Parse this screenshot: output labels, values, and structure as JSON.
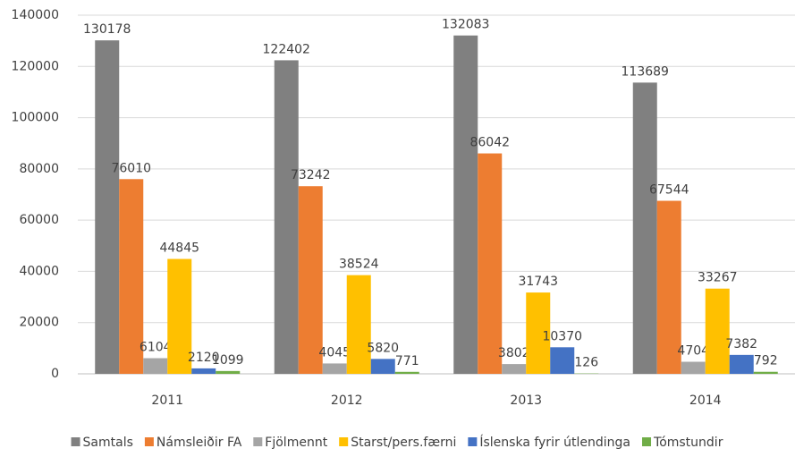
{
  "chart_data": {
    "type": "bar",
    "categories": [
      "2011",
      "2012",
      "2013",
      "2014"
    ],
    "series": [
      {
        "name": "Samtals",
        "color": "#808080",
        "values": [
          130178,
          122402,
          132083,
          113689
        ]
      },
      {
        "name": "Námsleiðir FA",
        "color": "#ed7d31",
        "values": [
          76010,
          73242,
          86042,
          67544
        ]
      },
      {
        "name": "Fjölmennt",
        "color": "#a5a5a5",
        "values": [
          6104,
          4045,
          3802,
          4704
        ]
      },
      {
        "name": "Starst/pers.færni",
        "color": "#ffc000",
        "values": [
          44845,
          38524,
          31743,
          33267
        ]
      },
      {
        "name": "Íslenska fyrir útlendinga",
        "color": "#4472c4",
        "values": [
          2120,
          5820,
          10370,
          7382
        ]
      },
      {
        "name": "Tómstundir",
        "color": "#70ad47",
        "values": [
          1099,
          771,
          126,
          792
        ]
      }
    ],
    "ylim": [
      0,
      140000
    ],
    "yticks": [
      0,
      20000,
      40000,
      60000,
      80000,
      100000,
      120000,
      140000
    ],
    "grid": true,
    "legend": "bottom"
  }
}
